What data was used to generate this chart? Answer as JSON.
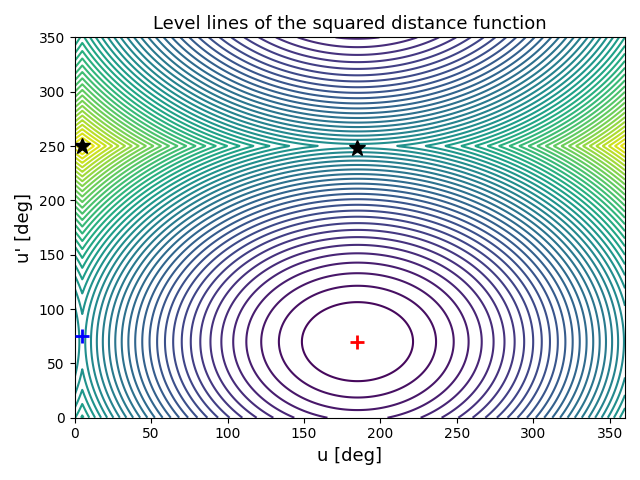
{
  "title": "Level lines of the squared distance function",
  "xlabel": "u [deg]",
  "ylabel": "u' [deg]",
  "xlim": [
    0,
    360
  ],
  "ylim": [
    0,
    350
  ],
  "min_point": [
    185,
    70
  ],
  "blue_cross": [
    5,
    75
  ],
  "black_star1": [
    5,
    250
  ],
  "black_star2": [
    185,
    248
  ],
  "n_levels": 50,
  "colormap": "viridis",
  "figsize": [
    6.4,
    4.8
  ],
  "dpi": 100
}
